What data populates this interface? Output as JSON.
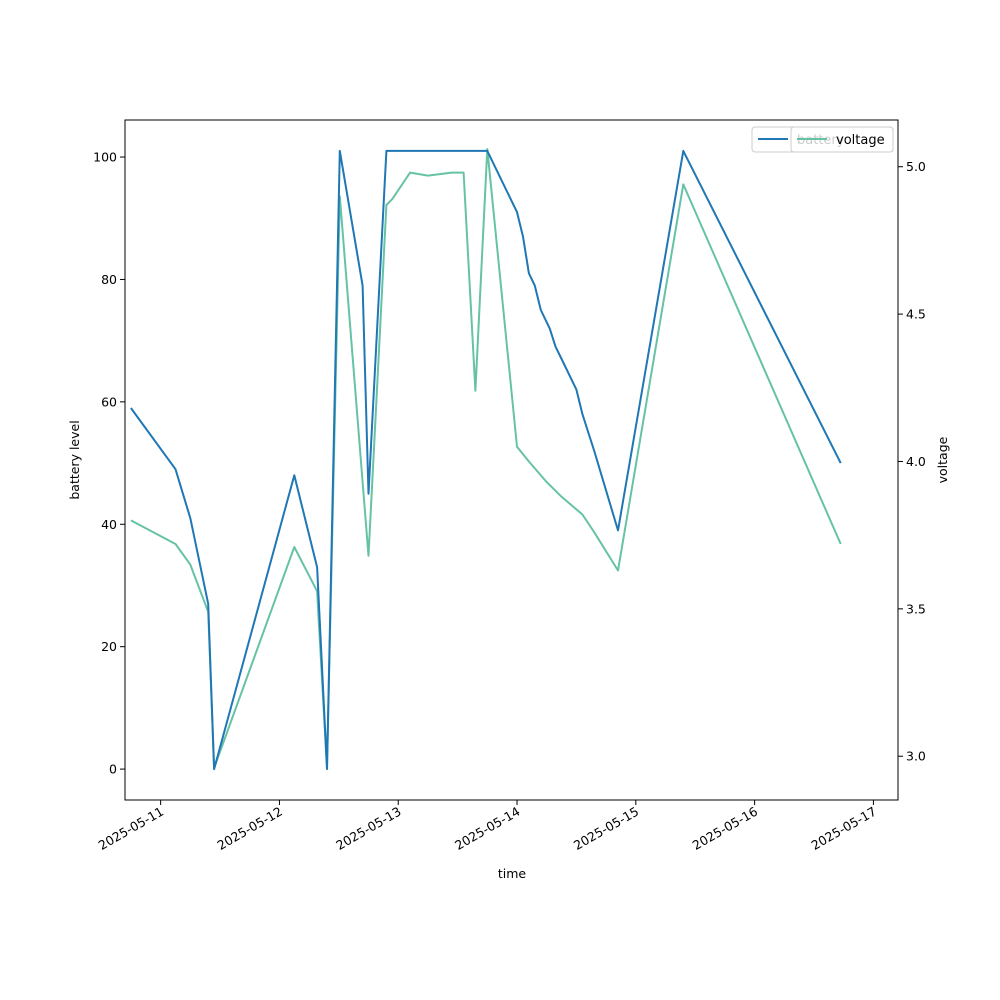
{
  "chart_data": {
    "type": "line",
    "xlabel": "time",
    "ylabel": "battery level",
    "y2label": "voltage",
    "x_ticks": [
      "2025-05-11",
      "2025-05-12",
      "2025-05-13",
      "2025-05-14",
      "2025-05-15",
      "2025-05-16",
      "2025-05-17"
    ],
    "y_ticks": [
      0,
      20,
      40,
      60,
      80,
      100
    ],
    "y2_ticks": [
      "3.0",
      "3.5",
      "4.0",
      "4.5",
      "5.0"
    ],
    "xlim": [
      "2025-05-10 16:48",
      "2025-05-17 04:58"
    ],
    "ylim": [
      -5.05,
      106.05
    ],
    "y2lim": [
      2.8515,
      5.1585
    ],
    "legend_position": "top-right",
    "legend_entries": [
      "battery",
      "voltage"
    ],
    "colors": {
      "battery": "#1f77b4",
      "voltage": "#66c2a5"
    },
    "series": [
      {
        "name": "battery",
        "axis": "left",
        "points": [
          [
            "2025-05-10 18:00",
            59
          ],
          [
            "2025-05-11 03:00",
            49
          ],
          [
            "2025-05-11 06:00",
            41
          ],
          [
            "2025-05-11 09:36",
            27
          ],
          [
            "2025-05-11 10:48",
            0
          ],
          [
            "2025-05-12 03:00",
            48
          ],
          [
            "2025-05-12 07:36",
            33
          ],
          [
            "2025-05-12 09:36",
            0
          ],
          [
            "2025-05-12 12:12",
            101
          ],
          [
            "2025-05-12 16:48",
            79
          ],
          [
            "2025-05-12 18:00",
            45
          ],
          [
            "2025-05-12 21:36",
            101
          ],
          [
            "2025-05-13 06:00",
            101
          ],
          [
            "2025-05-13 12:00",
            101
          ],
          [
            "2025-05-13 18:00",
            101
          ],
          [
            "2025-05-14 00:00",
            91
          ],
          [
            "2025-05-14 01:12",
            87
          ],
          [
            "2025-05-14 02:24",
            81
          ],
          [
            "2025-05-14 03:36",
            79
          ],
          [
            "2025-05-14 04:48",
            75
          ],
          [
            "2025-05-14 06:36",
            72
          ],
          [
            "2025-05-14 07:48",
            69
          ],
          [
            "2025-05-14 09:00",
            67
          ],
          [
            "2025-05-14 10:48",
            64
          ],
          [
            "2025-05-14 12:00",
            62
          ],
          [
            "2025-05-14 13:12",
            58
          ],
          [
            "2025-05-14 14:24",
            55
          ],
          [
            "2025-05-14 15:36",
            52
          ],
          [
            "2025-05-14 20:24",
            39
          ],
          [
            "2025-05-15 09:36",
            101
          ],
          [
            "2025-05-16 17:24",
            50
          ]
        ]
      },
      {
        "name": "voltage",
        "axis": "right",
        "points": [
          [
            "2025-05-10 18:00",
            3.8
          ],
          [
            "2025-05-11 03:00",
            3.72
          ],
          [
            "2025-05-11 06:00",
            3.65
          ],
          [
            "2025-05-11 09:36",
            3.49
          ],
          [
            "2025-05-11 10:48",
            2.96
          ],
          [
            "2025-05-12 03:00",
            3.71
          ],
          [
            "2025-05-12 07:36",
            3.56
          ],
          [
            "2025-05-12 09:36",
            2.96
          ],
          [
            "2025-05-12 12:12",
            4.9
          ],
          [
            "2025-05-12 18:00",
            3.68
          ],
          [
            "2025-05-12 21:36",
            4.87
          ],
          [
            "2025-05-12 22:48",
            4.89
          ],
          [
            "2025-05-13 02:24",
            4.98
          ],
          [
            "2025-05-13 06:00",
            4.97
          ],
          [
            "2025-05-13 10:48",
            4.98
          ],
          [
            "2025-05-13 13:12",
            4.98
          ],
          [
            "2025-05-13 15:36",
            4.24
          ],
          [
            "2025-05-13 18:00",
            5.06
          ],
          [
            "2025-05-14 00:00",
            4.05
          ],
          [
            "2025-05-14 02:24",
            4.0
          ],
          [
            "2025-05-14 06:00",
            3.93
          ],
          [
            "2025-05-14 09:00",
            3.88
          ],
          [
            "2025-05-14 13:12",
            3.82
          ],
          [
            "2025-05-14 15:36",
            3.76
          ],
          [
            "2025-05-14 20:24",
            3.63
          ],
          [
            "2025-05-15 09:36",
            4.94
          ],
          [
            "2025-05-16 17:24",
            3.72
          ]
        ]
      }
    ]
  }
}
